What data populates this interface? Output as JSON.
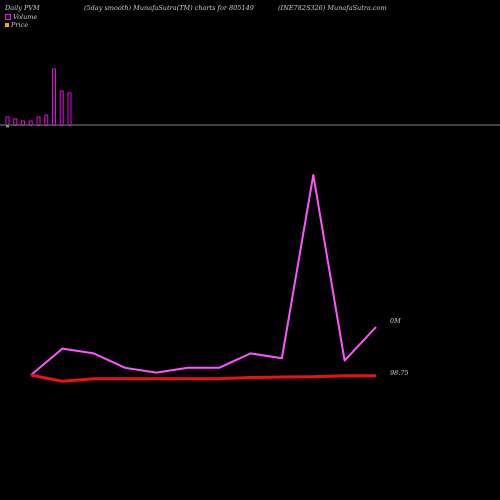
{
  "header": {
    "left": "Daily PVM",
    "center": "(5day smooth) MunafaSutra(TM) charts for 805149",
    "right": "(INE782S326) MunafaSutra.com"
  },
  "legend": {
    "items": [
      {
        "label": "Volume",
        "color": "#ff00ff"
      },
      {
        "label": "Price",
        "color": "#ffa500"
      }
    ]
  },
  "chart_data": [
    {
      "type": "bar",
      "title": "",
      "series": [
        {
          "name": "Volume",
          "color": "#ee00ee",
          "values": [
            2,
            1.5,
            1,
            1,
            2,
            2.5,
            14,
            8.5,
            8
          ]
        },
        {
          "name": "Volume (negative)",
          "color": "#33cc33",
          "values": [
            -0.6,
            -0.2,
            -0.2,
            -0.2,
            -0.2,
            -0.2,
            -0.2,
            -0.2,
            -0.2
          ]
        }
      ],
      "ylim": [
        -1,
        14
      ]
    },
    {
      "type": "line",
      "series": [
        {
          "name": "Volume",
          "color": "#ff55ff",
          "values": [
            0,
            6.6,
            5.4,
            1.8,
            0.6,
            1.8,
            1.8,
            5.4,
            4.2,
            50,
            3.6,
            12
          ]
        },
        {
          "name": "Price",
          "color": "#ee1111",
          "values": [
            98.75,
            98.5,
            98.6,
            98.6,
            98.6,
            98.6,
            98.6,
            98.65,
            98.67,
            98.68,
            98.72,
            98.72
          ]
        }
      ],
      "right_labels": {
        "volume": "0M",
        "price": "98.75"
      }
    }
  ]
}
